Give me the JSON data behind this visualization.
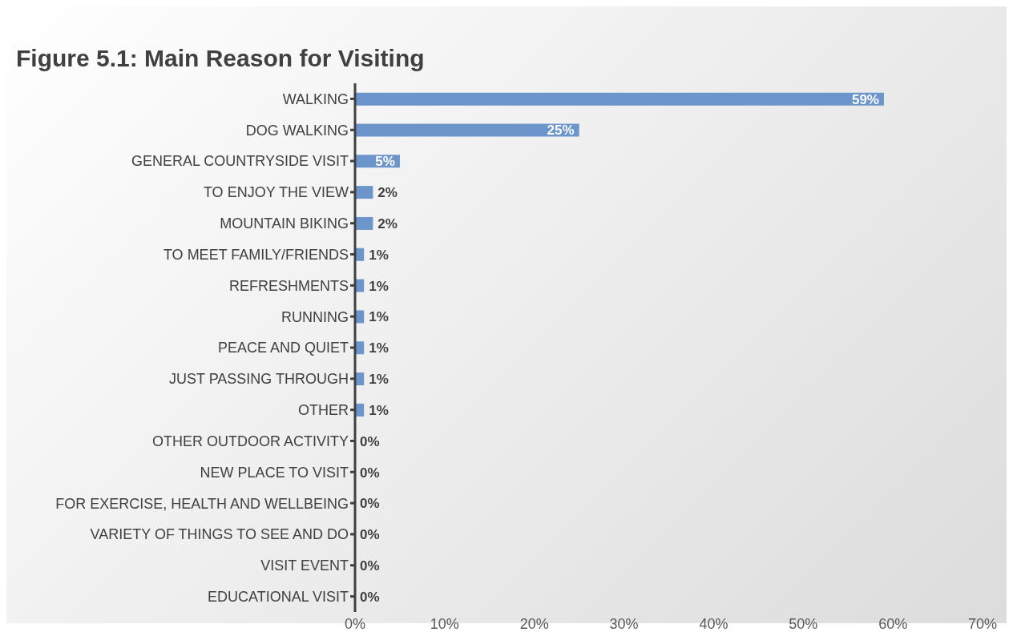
{
  "chart_data": {
    "type": "bar",
    "orientation": "horizontal",
    "title": "Figure 5.1: Main Reason for Visiting",
    "categories": [
      "WALKING",
      "DOG WALKING",
      "GENERAL COUNTRYSIDE VISIT",
      "TO ENJOY THE VIEW",
      "MOUNTAIN BIKING",
      "TO MEET FAMILY/FRIENDS",
      "REFRESHMENTS",
      "RUNNING",
      "PEACE AND QUIET",
      "JUST PASSING THROUGH",
      "OTHER",
      "OTHER OUTDOOR ACTIVITY",
      "NEW PLACE TO VISIT",
      "FOR EXERCISE, HEALTH AND WELLBEING",
      "VARIETY OF THINGS TO SEE AND DO",
      "VISIT EVENT",
      "EDUCATIONAL VISIT"
    ],
    "values": [
      59,
      25,
      5,
      2,
      2,
      1,
      1,
      1,
      1,
      1,
      1,
      0,
      0,
      0,
      0,
      0,
      0
    ],
    "value_labels": [
      "59%",
      "25%",
      "5%",
      "2%",
      "2%",
      "1%",
      "1%",
      "1%",
      "1%",
      "1%",
      "1%",
      "0%",
      "0%",
      "0%",
      "0%",
      "0%",
      "0%"
    ],
    "color": "#6b95cb",
    "xlim": [
      0,
      70
    ],
    "xticks": [
      {
        "value": 0,
        "label": "0%"
      },
      {
        "value": 10,
        "label": "10%"
      },
      {
        "value": 20,
        "label": "20%"
      },
      {
        "value": 30,
        "label": "30%"
      },
      {
        "value": 40,
        "label": "40%"
      },
      {
        "value": 50,
        "label": "50%"
      },
      {
        "value": 60,
        "label": "60%"
      },
      {
        "value": 70,
        "label": "70%"
      }
    ]
  }
}
